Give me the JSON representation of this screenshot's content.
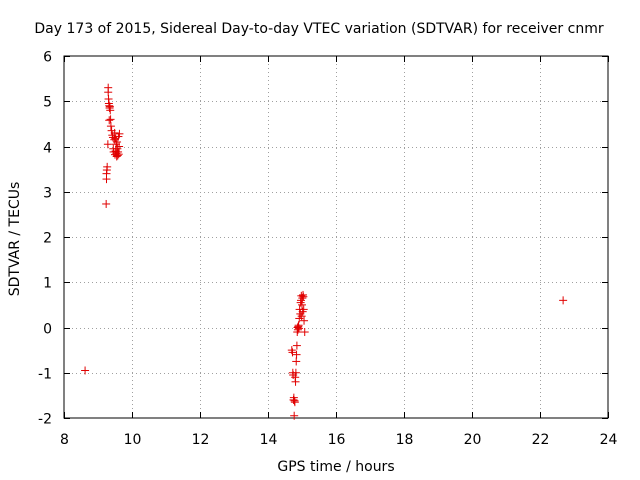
{
  "chart_data": {
    "type": "scatter",
    "title": "Day 173 of 2015, Sidereal Day-to-day VTEC variation (SDTVAR) for receiver cnmr",
    "xlabel": "GPS time / hours",
    "ylabel": "SDTVAR / TECUs",
    "xlim": [
      8,
      24
    ],
    "ylim": [
      -2,
      6
    ],
    "xticks": [
      8,
      10,
      12,
      14,
      16,
      18,
      20,
      22,
      24
    ],
    "yticks": [
      -2,
      -1,
      0,
      1,
      2,
      3,
      4,
      5,
      6
    ],
    "grid": true,
    "series": [
      {
        "name": "SDTVAR",
        "color": "#e00000",
        "marker": "+",
        "x": [
          8.62,
          9.24,
          9.25,
          9.25,
          9.26,
          9.27,
          9.29,
          9.3,
          9.3,
          9.31,
          9.32,
          9.33,
          9.33,
          9.34,
          9.35,
          9.36,
          9.37,
          9.38,
          9.4,
          9.42,
          9.44,
          9.45,
          9.46,
          9.48,
          9.49,
          9.5,
          9.51,
          9.52,
          9.53,
          9.54,
          9.55,
          9.56,
          9.57,
          9.58,
          9.59,
          9.6,
          9.61,
          9.62,
          9.63,
          14.7,
          14.72,
          14.73,
          14.74,
          14.75,
          14.76,
          14.77,
          14.78,
          14.79,
          14.8,
          14.81,
          14.82,
          14.83,
          14.84,
          14.85,
          14.86,
          14.87,
          14.88,
          14.89,
          14.9,
          14.91,
          14.92,
          14.93,
          14.95,
          14.96,
          14.97,
          14.98,
          14.99,
          15.0,
          15.01,
          15.02,
          15.03,
          15.04,
          15.05,
          15.06,
          15.08,
          22.68
        ],
        "y": [
          -0.95,
          2.73,
          3.28,
          3.4,
          3.48,
          3.55,
          4.05,
          5.3,
          5.2,
          5.05,
          4.95,
          4.9,
          4.58,
          4.85,
          4.88,
          4.8,
          4.6,
          4.45,
          4.35,
          4.25,
          4.2,
          3.95,
          3.88,
          4.15,
          4.3,
          3.82,
          4.18,
          3.9,
          4.05,
          3.85,
          3.78,
          4.1,
          3.95,
          3.8,
          3.88,
          4.22,
          3.83,
          4.0,
          4.28,
          -0.5,
          -0.55,
          -1.0,
          -1.05,
          -1.6,
          -1.55,
          -1.95,
          -1.62,
          -1.65,
          -1.1,
          -1.2,
          -1.0,
          -0.75,
          -0.6,
          -0.4,
          -0.1,
          0.0,
          -0.05,
          0.02,
          0.05,
          -0.02,
          0.2,
          0.4,
          0.3,
          0.55,
          0.6,
          0.7,
          0.25,
          0.5,
          0.65,
          0.35,
          0.72,
          0.68,
          0.4,
          0.15,
          -0.1,
          0.6
        ]
      }
    ]
  }
}
